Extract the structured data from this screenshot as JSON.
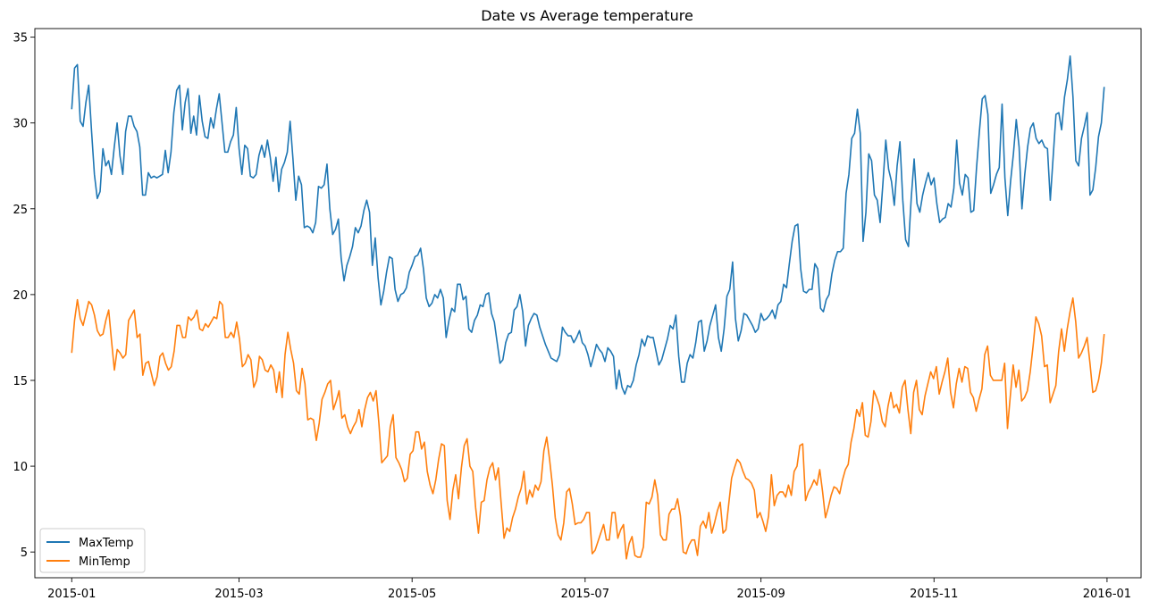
{
  "chart_data": {
    "type": "line",
    "title": "Date vs Average temperature",
    "xlabel": "",
    "ylabel": "",
    "xlim": [
      "2014-12-19",
      "2016-01-13"
    ],
    "ylim": [
      3.5,
      35.5
    ],
    "x_ticks": [
      "2015-01",
      "2015-03",
      "2015-05",
      "2015-07",
      "2015-09",
      "2015-11",
      "2016-01"
    ],
    "y_ticks": [
      5,
      10,
      15,
      20,
      25,
      30,
      35
    ],
    "grid": false,
    "legend_position": "lower-left",
    "x_start": "2015-01-01",
    "x_end": "2015-12-31",
    "series": [
      {
        "name": "MaxTemp",
        "color": "#1f77b4",
        "values": [
          30.8,
          33.2,
          33.4,
          30.1,
          29.8,
          31.2,
          32.2,
          29.5,
          27.0,
          25.6,
          26.0,
          28.5,
          27.5,
          27.8,
          27.0,
          28.6,
          30.0,
          28.1,
          27.0,
          29.5,
          30.4,
          30.4,
          29.8,
          29.5,
          28.6,
          25.8,
          25.8,
          27.1,
          26.8,
          26.9,
          26.8,
          26.9,
          27.0,
          28.4,
          27.1,
          28.3,
          30.6,
          31.9,
          32.2,
          29.6,
          31.2,
          32.0,
          29.4,
          30.4,
          29.3,
          31.6,
          30.1,
          29.2,
          29.1,
          30.3,
          29.7,
          30.8,
          31.7,
          30.0,
          28.3,
          28.3,
          28.9,
          29.3,
          30.9,
          28.5,
          27.0,
          28.7,
          28.5,
          26.9,
          26.8,
          27.0,
          28.1,
          28.7,
          28.0,
          29.0,
          28.0,
          26.6,
          28.0,
          26.0,
          27.3,
          27.7,
          28.3,
          30.1,
          27.9,
          25.5,
          26.9,
          26.4,
          23.9,
          24.0,
          23.9,
          23.6,
          24.2,
          26.3,
          26.2,
          26.4,
          27.6,
          25.0,
          23.5,
          23.8,
          24.4,
          22.1,
          20.8,
          21.7,
          22.2,
          22.8,
          23.9,
          23.6,
          24.0,
          24.9,
          25.5,
          24.8,
          21.7,
          23.3,
          21.0,
          19.4,
          20.2,
          21.3,
          22.2,
          22.1,
          20.3,
          19.6,
          20.0,
          20.1,
          20.4,
          21.3,
          21.7,
          22.2,
          22.3,
          22.7,
          21.5,
          19.8,
          19.3,
          19.5,
          20.0,
          19.8,
          20.3,
          19.8,
          17.5,
          18.5,
          19.2,
          19.0,
          20.6,
          20.6,
          19.7,
          19.9,
          18.0,
          17.8,
          18.5,
          18.8,
          19.4,
          19.3,
          20.0,
          20.1,
          18.9,
          18.4,
          17.2,
          16.0,
          16.2,
          17.2,
          17.7,
          17.8,
          19.1,
          19.3,
          20.0,
          19.0,
          17.0,
          18.2,
          18.6,
          18.9,
          18.8,
          18.1,
          17.6,
          17.1,
          16.7,
          16.3,
          16.2,
          16.1,
          16.5,
          18.1,
          17.8,
          17.6,
          17.6,
          17.2,
          17.5,
          17.9,
          17.2,
          17.0,
          16.5,
          15.8,
          16.4,
          17.1,
          16.8,
          16.6,
          16.1,
          16.9,
          16.7,
          16.4,
          14.5,
          15.6,
          14.6,
          14.2,
          14.7,
          14.6,
          15.0,
          15.9,
          16.5,
          17.4,
          17.0,
          17.6,
          17.5,
          17.5,
          16.7,
          15.9,
          16.2,
          16.8,
          17.4,
          18.2,
          18.0,
          18.8,
          16.4,
          14.9,
          14.9,
          16.0,
          16.5,
          16.3,
          17.2,
          18.4,
          18.5,
          16.7,
          17.3,
          18.2,
          18.8,
          19.4,
          17.5,
          16.7,
          18.0,
          19.9,
          20.3,
          21.9,
          18.6,
          17.3,
          17.9,
          18.9,
          18.8,
          18.5,
          18.2,
          17.8,
          18.0,
          18.9,
          18.5,
          18.6,
          18.8,
          19.1,
          18.6,
          19.4,
          19.6,
          20.6,
          20.4,
          21.8,
          23.1,
          24.0,
          24.1,
          21.5,
          20.2,
          20.1,
          20.3,
          20.3,
          21.8,
          21.5,
          19.2,
          19.0,
          19.7,
          20.0,
          21.2,
          22.0,
          22.5,
          22.5,
          22.7,
          25.9,
          27.0,
          29.1,
          29.4,
          30.8,
          29.4,
          23.1,
          24.8,
          28.2,
          27.8,
          25.8,
          25.5,
          24.2,
          26.5,
          29.0,
          27.3,
          26.6,
          25.2,
          27.5,
          28.9,
          25.5,
          23.2,
          22.8,
          25.7,
          27.9,
          25.3,
          24.8,
          25.8,
          26.5,
          27.1,
          26.4,
          26.8,
          25.3,
          24.2,
          24.4,
          24.5,
          25.3,
          25.1,
          26.2,
          29.0,
          26.5,
          25.8,
          27.0,
          26.8,
          24.8,
          24.9,
          27.4,
          29.5,
          31.4,
          31.6,
          30.5,
          25.9,
          26.4,
          27.0,
          27.4,
          31.1,
          26.8,
          24.6,
          26.6,
          28.2,
          30.2,
          28.6,
          25.0,
          27.0,
          28.6,
          29.7,
          30.0,
          29.1,
          28.8,
          29.0,
          28.6,
          28.5,
          25.5,
          28.0,
          30.5,
          30.6,
          29.6,
          31.5,
          32.5,
          33.9,
          31.5,
          27.8,
          27.5,
          29.1,
          29.8,
          30.6,
          25.8,
          26.1,
          27.4,
          29.2,
          30.0,
          32.1
        ]
      },
      {
        "name": "MinTemp",
        "color": "#ff7f0e",
        "values": [
          16.6,
          18.5,
          19.7,
          18.6,
          18.2,
          18.9,
          19.6,
          19.4,
          18.8,
          17.9,
          17.6,
          17.7,
          18.5,
          19.1,
          17.3,
          15.6,
          16.8,
          16.6,
          16.3,
          16.5,
          18.5,
          18.8,
          19.1,
          17.5,
          17.7,
          15.3,
          16.0,
          16.1,
          15.4,
          14.7,
          15.2,
          16.4,
          16.6,
          16.0,
          15.6,
          15.8,
          16.7,
          18.2,
          18.2,
          17.5,
          17.5,
          18.7,
          18.5,
          18.7,
          19.1,
          18.0,
          17.9,
          18.3,
          18.1,
          18.4,
          18.7,
          18.6,
          19.6,
          19.4,
          17.5,
          17.5,
          17.8,
          17.5,
          18.4,
          17.4,
          15.8,
          16.0,
          16.5,
          16.2,
          14.6,
          15.0,
          16.4,
          16.2,
          15.6,
          15.5,
          15.9,
          15.6,
          14.3,
          15.5,
          14.0,
          16.5,
          17.8,
          16.8,
          16.0,
          14.4,
          14.2,
          15.7,
          14.8,
          12.7,
          12.8,
          12.7,
          11.5,
          12.5,
          13.9,
          14.3,
          14.8,
          15.0,
          13.3,
          13.8,
          14.4,
          12.8,
          13.0,
          12.3,
          11.9,
          12.3,
          12.6,
          13.3,
          12.3,
          13.3,
          14.0,
          14.3,
          13.8,
          14.4,
          12.5,
          10.2,
          10.4,
          10.6,
          12.3,
          13.0,
          10.5,
          10.2,
          9.8,
          9.1,
          9.3,
          10.7,
          10.9,
          12.0,
          12.0,
          11.0,
          11.4,
          9.7,
          8.9,
          8.4,
          9.2,
          10.4,
          11.3,
          11.2,
          8.0,
          6.9,
          8.6,
          9.5,
          8.1,
          9.9,
          11.2,
          11.6,
          10.0,
          9.7,
          7.6,
          6.1,
          7.9,
          8.0,
          9.2,
          9.9,
          10.2,
          9.2,
          9.9,
          7.8,
          5.8,
          6.4,
          6.2,
          7.0,
          7.5,
          8.2,
          8.7,
          9.7,
          7.8,
          8.6,
          8.2,
          8.9,
          8.6,
          9.1,
          10.9,
          11.7,
          10.4,
          8.9,
          7.0,
          6.0,
          5.7,
          6.7,
          8.5,
          8.7,
          7.8,
          6.6,
          6.7,
          6.7,
          6.9,
          7.3,
          7.3,
          4.9,
          5.1,
          5.6,
          6.1,
          6.6,
          5.7,
          5.7,
          7.3,
          7.3,
          5.8,
          6.3,
          6.6,
          4.6,
          5.5,
          5.9,
          4.8,
          4.7,
          4.7,
          5.3,
          7.9,
          7.8,
          8.2,
          9.2,
          8.3,
          6.0,
          5.7,
          5.7,
          7.2,
          7.5,
          7.5,
          8.1,
          7.1,
          5.0,
          4.9,
          5.4,
          5.7,
          5.7,
          4.8,
          6.5,
          6.8,
          6.4,
          7.3,
          6.1,
          6.7,
          7.4,
          7.9,
          6.1,
          6.3,
          7.8,
          9.3,
          9.9,
          10.4,
          10.2,
          9.7,
          9.3,
          9.2,
          9.0,
          8.6,
          7.0,
          7.3,
          6.8,
          6.2,
          7.1,
          9.5,
          7.7,
          8.3,
          8.5,
          8.5,
          8.2,
          8.9,
          8.3,
          9.7,
          10.0,
          11.2,
          11.3,
          8.0,
          8.5,
          8.8,
          9.2,
          8.9,
          9.8,
          8.5,
          7.0,
          7.6,
          8.3,
          8.8,
          8.7,
          8.4,
          9.2,
          9.8,
          10.1,
          11.4,
          12.2,
          13.3,
          12.9,
          13.7,
          11.8,
          11.7,
          12.6,
          14.4,
          14.0,
          13.5,
          12.6,
          12.3,
          13.5,
          14.3,
          13.4,
          13.6,
          13.1,
          14.6,
          15.0,
          13.3,
          11.9,
          14.3,
          15.0,
          13.3,
          13.0,
          14.1,
          14.8,
          15.5,
          15.1,
          15.8,
          14.2,
          14.9,
          15.5,
          16.3,
          14.3,
          13.4,
          14.8,
          15.7,
          14.9,
          15.8,
          15.7,
          14.3,
          14.0,
          13.2,
          13.9,
          14.5,
          16.5,
          17.0,
          15.3,
          15.0,
          15.0,
          15.0,
          15.0,
          16.0,
          12.2,
          14.1,
          15.9,
          14.6,
          15.6,
          13.8,
          14.0,
          14.4,
          15.5,
          17.0,
          18.7,
          18.3,
          17.6,
          15.8,
          15.9,
          13.7,
          14.2,
          14.7,
          16.7,
          18.0,
          16.7,
          18.0,
          19.0,
          19.8,
          18.4,
          16.3,
          16.6,
          17.0,
          17.5,
          16.0,
          14.3,
          14.4,
          15.0,
          16.0,
          17.7
        ]
      }
    ]
  }
}
